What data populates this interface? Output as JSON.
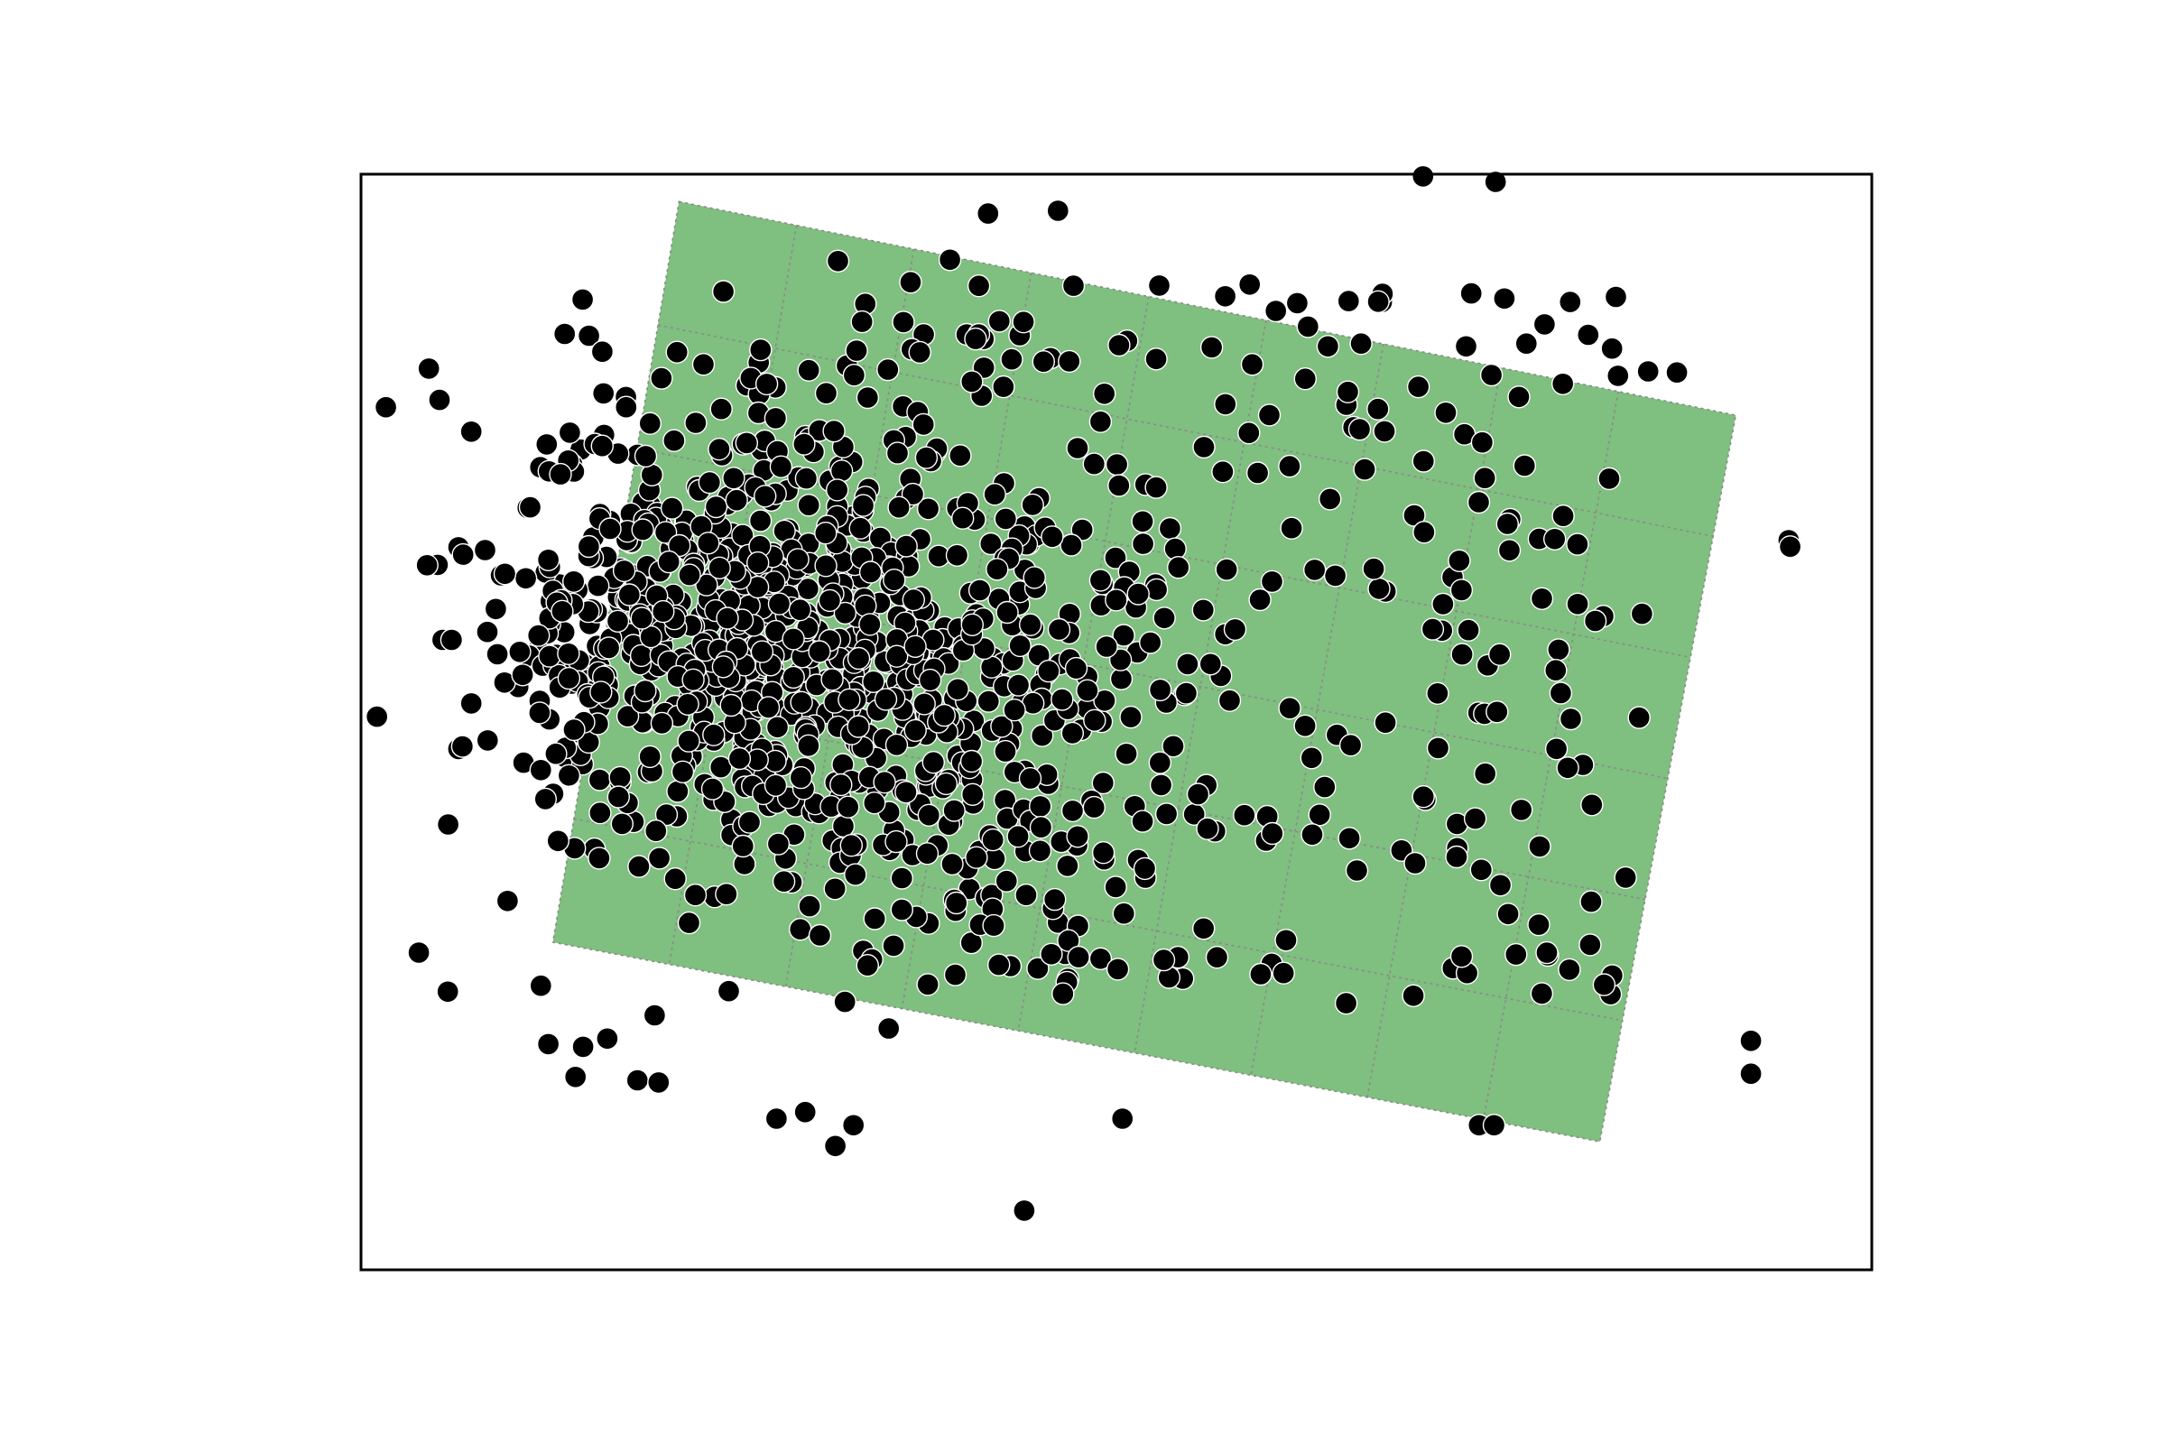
{
  "chart_data": {
    "type": "scatter",
    "title": "",
    "xlabel": "",
    "ylabel": "",
    "xlim": [
      0,
      100
    ],
    "ylim": [
      0,
      100
    ],
    "ticks_visible": false,
    "grid": false,
    "frame": true,
    "point_color": "#000000",
    "region": {
      "shape": "rotated-rectangle",
      "fill_color": "#7fbf7f",
      "grid_color": "#8a8a8a",
      "grid_style": "dotted",
      "grid_columns": 9,
      "grid_rows": 6,
      "corners": [
        [
          21.05,
          97.5
        ],
        [
          91.0,
          78.0
        ],
        [
          82.0,
          11.7
        ],
        [
          12.7,
          29.9
        ]
      ]
    },
    "point_count": 1200,
    "points_outside_region_sample": [
      [
        5.2,
        79.4
      ],
      [
        7.3,
        76.5
      ],
      [
        5.4,
        57.5
      ],
      [
        6.0,
        57.5
      ],
      [
        7.3,
        51.7
      ],
      [
        11.2,
        69.6
      ],
      [
        9.5,
        53.6
      ],
      [
        10.7,
        54.3
      ],
      [
        12.4,
        64.8
      ],
      [
        13.2,
        72.6
      ],
      [
        14.1,
        49.3
      ],
      [
        12.9,
        47.1
      ],
      [
        12.4,
        20.6
      ],
      [
        14.2,
        17.6
      ],
      [
        16.3,
        21.1
      ],
      [
        18.3,
        17.3
      ],
      [
        19.7,
        17.1
      ],
      [
        27.5,
        13.8
      ],
      [
        29.4,
        14.4
      ],
      [
        32.6,
        13.2
      ],
      [
        31.4,
        11.3
      ],
      [
        43.9,
        5.4
      ],
      [
        50.4,
        13.8
      ],
      [
        70.3,
        99.8
      ],
      [
        75.1,
        99.3
      ],
      [
        83.2,
        81.6
      ],
      [
        85.2,
        82.0
      ],
      [
        87.1,
        81.9
      ],
      [
        94.5,
        66.6
      ],
      [
        94.6,
        66.0
      ],
      [
        92.0,
        20.9
      ],
      [
        92.0,
        17.9
      ],
      [
        74.0,
        13.2
      ],
      [
        75.0,
        13.2
      ]
    ]
  }
}
